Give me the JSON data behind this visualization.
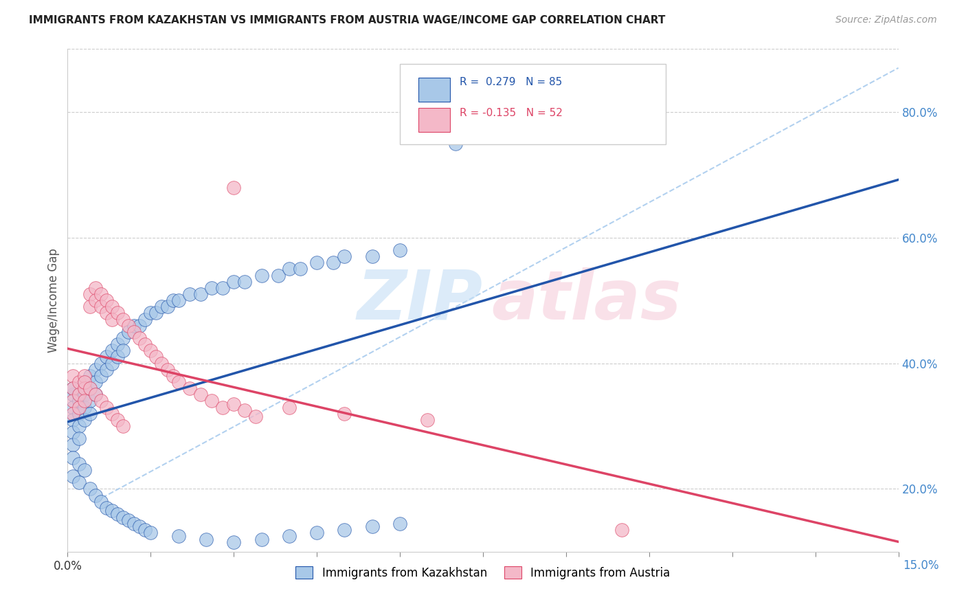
{
  "title": "IMMIGRANTS FROM KAZAKHSTAN VS IMMIGRANTS FROM AUSTRIA WAGE/INCOME GAP CORRELATION CHART",
  "source": "Source: ZipAtlas.com",
  "ylabel": "Wage/Income Gap",
  "right_yticks": [
    "20.0%",
    "40.0%",
    "60.0%",
    "80.0%"
  ],
  "right_ytick_vals": [
    0.2,
    0.4,
    0.6,
    0.8
  ],
  "color_blue": "#a8c8e8",
  "color_pink": "#f4b8c8",
  "line_blue": "#2255aa",
  "line_pink": "#dd4466",
  "line_dashed_color": "#aaccee",
  "background": "#ffffff",
  "grid_color": "#cccccc",
  "xmin": 0.0,
  "xmax": 0.15,
  "ymin": 0.1,
  "ymax": 0.9,
  "blue_x": [
    0.001,
    0.001,
    0.001,
    0.001,
    0.001,
    0.001,
    0.002,
    0.002,
    0.002,
    0.002,
    0.002,
    0.003,
    0.003,
    0.003,
    0.003,
    0.003,
    0.004,
    0.004,
    0.004,
    0.004,
    0.005,
    0.005,
    0.005,
    0.006,
    0.006,
    0.007,
    0.007,
    0.008,
    0.008,
    0.009,
    0.009,
    0.01,
    0.01,
    0.011,
    0.012,
    0.013,
    0.014,
    0.015,
    0.016,
    0.017,
    0.018,
    0.019,
    0.02,
    0.022,
    0.024,
    0.026,
    0.028,
    0.03,
    0.032,
    0.035,
    0.038,
    0.04,
    0.042,
    0.045,
    0.048,
    0.05,
    0.055,
    0.06,
    0.001,
    0.001,
    0.002,
    0.002,
    0.003,
    0.004,
    0.005,
    0.006,
    0.007,
    0.008,
    0.009,
    0.01,
    0.011,
    0.012,
    0.013,
    0.014,
    0.015,
    0.02,
    0.025,
    0.03,
    0.035,
    0.04,
    0.045,
    0.05,
    0.055,
    0.06,
    0.07
  ],
  "blue_y": [
    0.35,
    0.36,
    0.33,
    0.31,
    0.29,
    0.27,
    0.34,
    0.35,
    0.32,
    0.3,
    0.28,
    0.36,
    0.37,
    0.35,
    0.33,
    0.31,
    0.38,
    0.36,
    0.34,
    0.32,
    0.39,
    0.37,
    0.35,
    0.4,
    0.38,
    0.41,
    0.39,
    0.42,
    0.4,
    0.43,
    0.41,
    0.44,
    0.42,
    0.45,
    0.46,
    0.46,
    0.47,
    0.48,
    0.48,
    0.49,
    0.49,
    0.5,
    0.5,
    0.51,
    0.51,
    0.52,
    0.52,
    0.53,
    0.53,
    0.54,
    0.54,
    0.55,
    0.55,
    0.56,
    0.56,
    0.57,
    0.57,
    0.58,
    0.25,
    0.22,
    0.24,
    0.21,
    0.23,
    0.2,
    0.19,
    0.18,
    0.17,
    0.165,
    0.16,
    0.155,
    0.15,
    0.145,
    0.14,
    0.135,
    0.13,
    0.125,
    0.12,
    0.115,
    0.12,
    0.125,
    0.13,
    0.135,
    0.14,
    0.145,
    0.75
  ],
  "pink_x": [
    0.001,
    0.001,
    0.001,
    0.001,
    0.002,
    0.002,
    0.002,
    0.003,
    0.003,
    0.003,
    0.004,
    0.004,
    0.005,
    0.005,
    0.006,
    0.006,
    0.007,
    0.007,
    0.008,
    0.008,
    0.009,
    0.01,
    0.011,
    0.012,
    0.013,
    0.014,
    0.015,
    0.016,
    0.017,
    0.018,
    0.019,
    0.02,
    0.022,
    0.024,
    0.026,
    0.028,
    0.03,
    0.032,
    0.034,
    0.04,
    0.05,
    0.065,
    0.1,
    0.003,
    0.004,
    0.005,
    0.006,
    0.007,
    0.008,
    0.009,
    0.01,
    0.03
  ],
  "pink_y": [
    0.38,
    0.36,
    0.34,
    0.32,
    0.37,
    0.35,
    0.33,
    0.38,
    0.36,
    0.34,
    0.51,
    0.49,
    0.52,
    0.5,
    0.51,
    0.49,
    0.5,
    0.48,
    0.49,
    0.47,
    0.48,
    0.47,
    0.46,
    0.45,
    0.44,
    0.43,
    0.42,
    0.41,
    0.4,
    0.39,
    0.38,
    0.37,
    0.36,
    0.35,
    0.34,
    0.33,
    0.335,
    0.325,
    0.315,
    0.33,
    0.32,
    0.31,
    0.135,
    0.37,
    0.36,
    0.35,
    0.34,
    0.33,
    0.32,
    0.31,
    0.3,
    0.68
  ]
}
